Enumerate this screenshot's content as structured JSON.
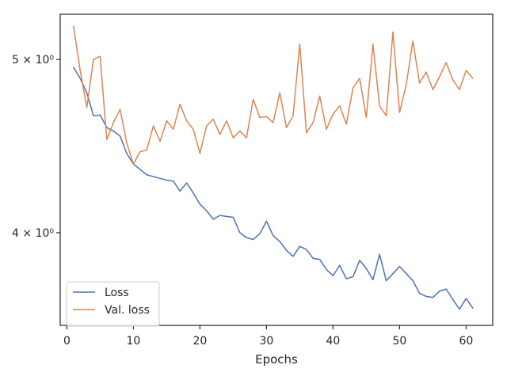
{
  "chart_data": {
    "type": "line",
    "title": "",
    "xlabel": "Epochs",
    "ylabel": "",
    "yscale": "log",
    "xlim": [
      -1,
      64
    ],
    "ylim": [
      3.55,
      5.3
    ],
    "grid": false,
    "legend_position": "lower-left",
    "x_ticks": [
      0,
      10,
      20,
      30,
      40,
      50,
      60
    ],
    "x_tick_labels": [
      "0",
      "10",
      "20",
      "30",
      "40",
      "50",
      "60"
    ],
    "y_ticks": [
      4,
      5
    ],
    "y_tick_labels": [
      "4 × 10⁰",
      "5 × 10⁰"
    ],
    "x": [
      1,
      2,
      3,
      4,
      5,
      6,
      7,
      8,
      9,
      10,
      11,
      12,
      13,
      14,
      15,
      16,
      17,
      18,
      19,
      20,
      21,
      22,
      23,
      24,
      25,
      26,
      27,
      28,
      29,
      30,
      31,
      32,
      33,
      34,
      35,
      36,
      37,
      38,
      39,
      40,
      41,
      42,
      43,
      44,
      45,
      46,
      47,
      48,
      49,
      50,
      51,
      52,
      53,
      54,
      55,
      56,
      57,
      58,
      59,
      60,
      61
    ],
    "series": [
      {
        "name": "Loss",
        "color": "#4c72b0",
        "values": [
          4.95,
          4.88,
          4.79,
          4.65,
          4.655,
          4.58,
          4.56,
          4.53,
          4.43,
          4.37,
          4.34,
          4.31,
          4.3,
          4.29,
          4.28,
          4.275,
          4.22,
          4.265,
          4.21,
          4.15,
          4.115,
          4.07,
          4.09,
          4.085,
          4.08,
          4.0,
          3.975,
          3.965,
          3.995,
          4.06,
          3.985,
          3.955,
          3.91,
          3.88,
          3.93,
          3.915,
          3.87,
          3.865,
          3.815,
          3.785,
          3.835,
          3.77,
          3.78,
          3.86,
          3.82,
          3.765,
          3.89,
          3.76,
          3.795,
          3.83,
          3.795,
          3.76,
          3.7,
          3.685,
          3.68,
          3.71,
          3.72,
          3.67,
          3.625,
          3.675,
          3.63
        ]
      },
      {
        "name": "Val. loss",
        "color": "#dd8452",
        "values": [
          5.22,
          4.93,
          4.7,
          5.0,
          5.02,
          4.51,
          4.61,
          4.69,
          4.49,
          4.37,
          4.44,
          4.45,
          4.59,
          4.5,
          4.62,
          4.57,
          4.72,
          4.62,
          4.57,
          4.43,
          4.59,
          4.63,
          4.54,
          4.62,
          4.52,
          4.56,
          4.52,
          4.75,
          4.64,
          4.645,
          4.61,
          4.79,
          4.58,
          4.65,
          5.1,
          4.55,
          4.61,
          4.77,
          4.57,
          4.66,
          4.71,
          4.6,
          4.82,
          4.88,
          4.64,
          5.1,
          4.71,
          4.65,
          5.18,
          4.67,
          4.84,
          5.12,
          4.85,
          4.92,
          4.81,
          4.89,
          4.98,
          4.87,
          4.81,
          4.93,
          4.88
        ]
      }
    ]
  }
}
